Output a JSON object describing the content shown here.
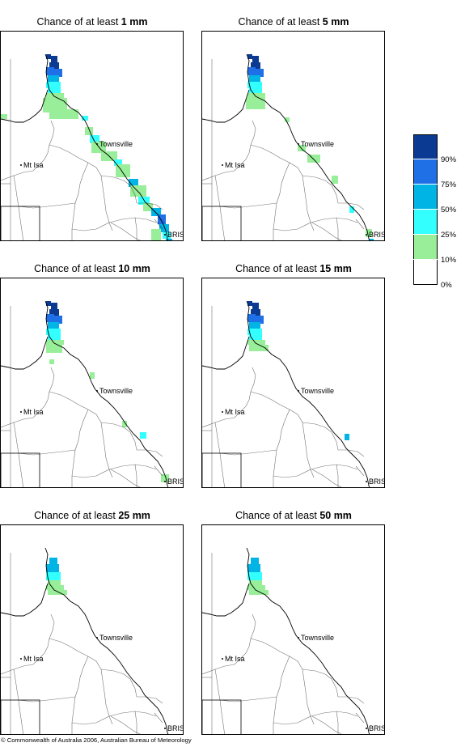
{
  "panels": [
    {
      "title_prefix": "Chance of at least",
      "amount": "1 mm",
      "level": 1
    },
    {
      "title_prefix": "Chance of at least",
      "amount": "5 mm",
      "level": 2
    },
    {
      "title_prefix": "Chance of at least",
      "amount": "10 mm",
      "level": 3
    },
    {
      "title_prefix": "Chance of at least",
      "amount": "15 mm",
      "level": 4
    },
    {
      "title_prefix": "Chance of at least",
      "amount": "25 mm",
      "level": 5
    },
    {
      "title_prefix": "Chance of at least",
      "amount": "50 mm",
      "level": 6
    }
  ],
  "places": {
    "townsville": "Townsville",
    "mt_isa": "Mt Isa",
    "brisbane": "BRIS"
  },
  "legend": {
    "labels": [
      "90%",
      "75%",
      "50%",
      "25%",
      "10%",
      "0%"
    ],
    "colors": [
      "#0b3a93",
      "#1f6fe6",
      "#00b4e6",
      "#33ffff",
      "#99ee99",
      "#ffffff"
    ]
  },
  "footer": "© Commonwealth of Australia 2006, Australian Bureau of Meteorology"
}
